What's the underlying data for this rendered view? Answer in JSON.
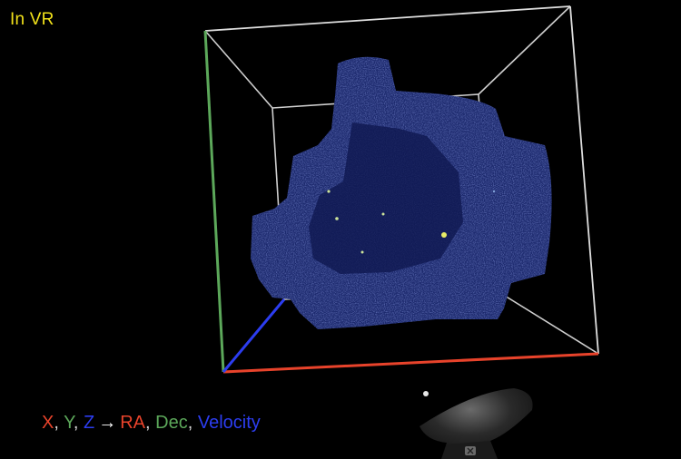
{
  "overlay": {
    "mode_label": "In VR"
  },
  "axis_legend": {
    "x": {
      "label": "X",
      "color": "#e8432b"
    },
    "y": {
      "label": "Y",
      "color": "#5ca85a"
    },
    "z": {
      "label": "Z",
      "color": "#2c3df0"
    },
    "arrow": "→",
    "ra": {
      "label": "RA",
      "color": "#e8432b"
    },
    "dec": {
      "label": "Dec",
      "color": "#5ca85a"
    },
    "velocity": {
      "label": "Velocity",
      "color": "#2c3df0"
    }
  },
  "scene": {
    "background": "#000000",
    "bounding_box_color": "#d0d0d0",
    "volume_color": "#1d2a6e",
    "axis_colors": {
      "x": "#e8432b",
      "y": "#5ca85a",
      "z": "#2c3df0"
    },
    "controller_icon": "vr-controller-icon"
  }
}
